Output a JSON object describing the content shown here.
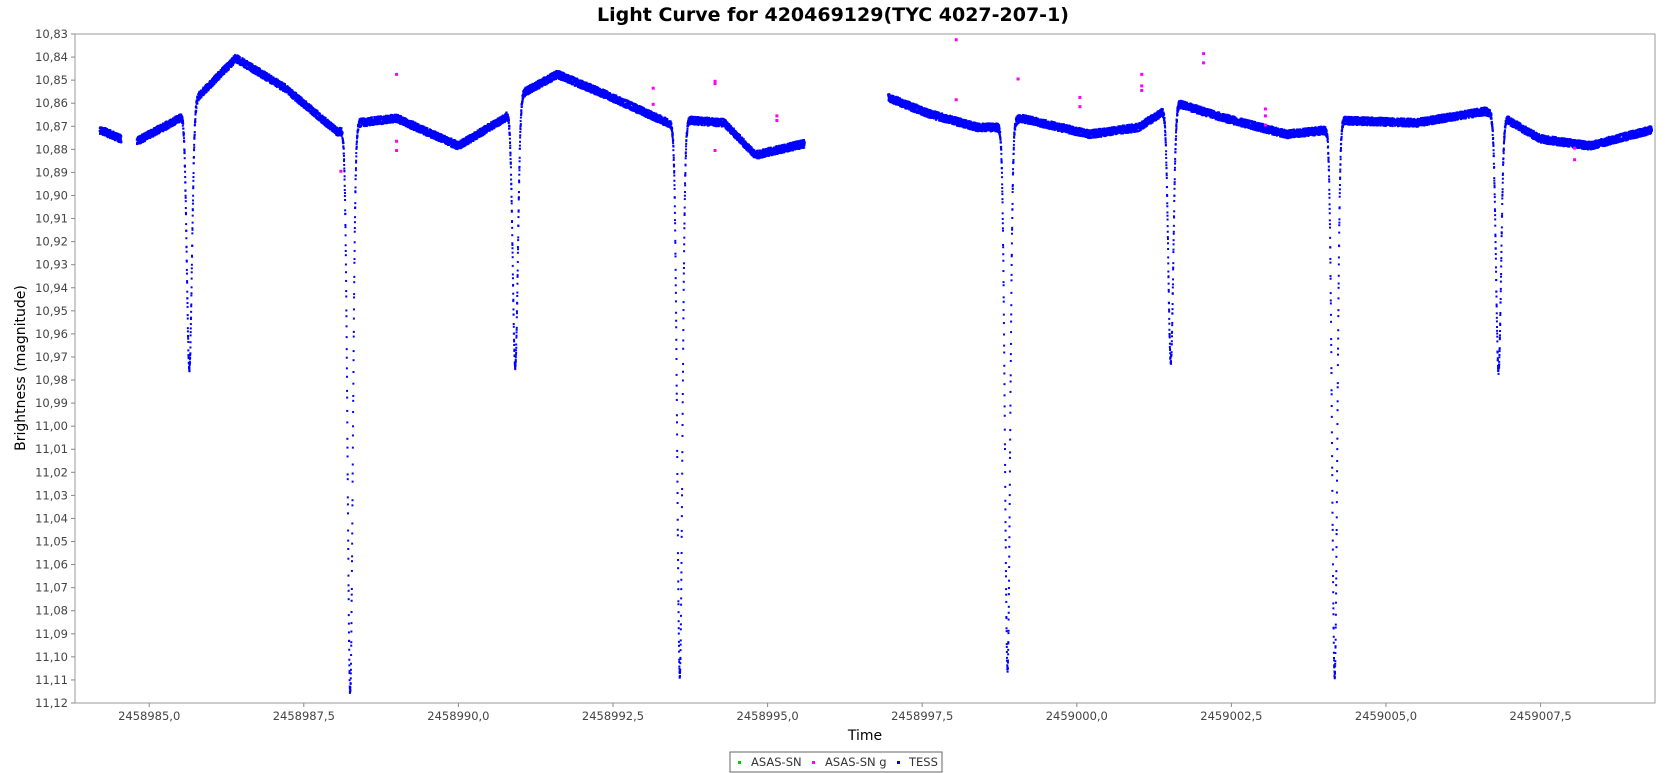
{
  "chart_data": {
    "type": "scatter",
    "title": "Light Curve for 420469129(TYC 4027-207-1)",
    "xlabel": "Time",
    "ylabel": "Brightness (magnitude)",
    "xlim": [
      2458983.8,
      2459009.35
    ],
    "ylim": [
      10.83,
      11.12
    ],
    "y_inverted": true,
    "grid": false,
    "legend_position": "bottom-center",
    "x_ticks": [
      2458985.0,
      2458987.5,
      2458990.0,
      2458992.5,
      2458995.0,
      2458997.5,
      2459000.0,
      2459002.5,
      2459005.0,
      2459007.5
    ],
    "x_tick_labels": [
      "2458985,0",
      "2458987,5",
      "2458990,0",
      "2458992,5",
      "2458995,0",
      "2458997,5",
      "2459000,0",
      "2459002,5",
      "2459005,0",
      "2459007,5"
    ],
    "y_ticks": [
      10.83,
      10.84,
      10.85,
      10.86,
      10.87,
      10.88,
      10.89,
      10.9,
      10.91,
      10.92,
      10.93,
      10.94,
      10.95,
      10.96,
      10.97,
      10.98,
      10.99,
      11.0,
      11.01,
      11.02,
      11.03,
      11.04,
      11.05,
      11.06,
      11.07,
      11.08,
      11.09,
      11.1,
      11.11,
      11.12
    ],
    "y_tick_labels": [
      "10,83",
      "10,84",
      "10,85",
      "10,86",
      "10,87",
      "10,88",
      "10,89",
      "10,90",
      "10,91",
      "10,92",
      "10,93",
      "10,94",
      "10,95",
      "10,96",
      "10,97",
      "10,98",
      "10,99",
      "11,00",
      "11,01",
      "11,02",
      "11,03",
      "11,04",
      "11,05",
      "11,06",
      "11,07",
      "11,08",
      "11,09",
      "11,10",
      "11,11",
      "11,12"
    ],
    "series": [
      {
        "name": "ASAS-SN",
        "color": "#00cc00",
        "x": [],
        "y": []
      },
      {
        "name": "ASAS-SN g",
        "color": "#ff00ff",
        "x": [
          2458988.1,
          2458989.0,
          2458989.0,
          2458989.0,
          2458993.15,
          2458993.15,
          2458994.15,
          2458994.15,
          2458994.15,
          2458995.15,
          2458995.15,
          2458998.05,
          2458998.05,
          2458999.05,
          2459000.05,
          2459000.05,
          2459001.05,
          2459001.05,
          2459001.05,
          2459002.05,
          2459002.05,
          2459003.05,
          2459003.05,
          2459003.05,
          2459008.05,
          2459008.05
        ],
        "y": [
          10.8895,
          10.8475,
          10.8765,
          10.8805,
          10.8535,
          10.8605,
          10.8505,
          10.8515,
          10.8805,
          10.8655,
          10.8675,
          10.8325,
          10.8585,
          10.8495,
          10.8575,
          10.8615,
          10.8475,
          10.8525,
          10.8545,
          10.8385,
          10.8425,
          10.8625,
          10.8655,
          10.8695,
          10.8795,
          10.8845
        ]
      },
      {
        "name": "TESS",
        "color": "#0000ff",
        "segments": [
          [
            2458984.2,
            2458984.55
          ],
          [
            2458984.8,
            2458995.6
          ],
          [
            2458996.95,
            2459009.3
          ]
        ],
        "baseline": {
          "x": [
            2458984.2,
            2458984.55,
            2458984.8,
            2458985.5,
            2458985.82,
            2458986.4,
            2458987.2,
            2458988.05,
            2458988.4,
            2458989.0,
            2458990.0,
            2458990.75,
            2458991.05,
            2458991.6,
            2458992.4,
            2458993.55,
            2458993.75,
            2458994.3,
            2458994.8,
            2458995.6,
            2458996.95,
            2458997.6,
            2458998.4,
            2458998.75,
            2458999.1,
            2459000.2,
            2459001.0,
            2459001.35,
            2459001.55,
            2459002.4,
            2459003.4,
            2459004.1,
            2459004.3,
            2459005.5,
            2459006.6,
            2459006.85,
            2459007.5,
            2459008.3,
            2459009.3
          ],
          "y": [
            10.8715,
            10.8755,
            10.8765,
            10.8665,
            10.8565,
            10.8405,
            10.8535,
            10.8725,
            10.8685,
            10.8665,
            10.8785,
            10.8665,
            10.8555,
            10.8475,
            10.8565,
            10.8705,
            10.8675,
            10.8685,
            10.8825,
            10.8775,
            10.8575,
            10.8645,
            10.8705,
            10.8705,
            10.8665,
            10.8735,
            10.8705,
            10.8645,
            10.8595,
            10.8665,
            10.8735,
            10.8715,
            10.8675,
            10.8685,
            10.8635,
            10.8655,
            10.8755,
            10.8785,
            10.8715
          ]
        },
        "eclipses": [
          {
            "center": 2458985.65,
            "depth_mag": 10.975,
            "half_width_days": 0.09
          },
          {
            "center": 2458988.25,
            "depth_mag": 11.115,
            "half_width_days": 0.09
          },
          {
            "center": 2458990.92,
            "depth_mag": 10.974,
            "half_width_days": 0.09
          },
          {
            "center": 2458993.58,
            "depth_mag": 11.108,
            "half_width_days": 0.09
          },
          {
            "center": 2458998.88,
            "depth_mag": 11.105,
            "half_width_days": 0.09
          },
          {
            "center": 2459001.52,
            "depth_mag": 10.972,
            "half_width_days": 0.09
          },
          {
            "center": 2459004.17,
            "depth_mag": 11.108,
            "half_width_days": 0.09
          },
          {
            "center": 2459006.82,
            "depth_mag": 10.976,
            "half_width_days": 0.09
          }
        ]
      }
    ]
  }
}
